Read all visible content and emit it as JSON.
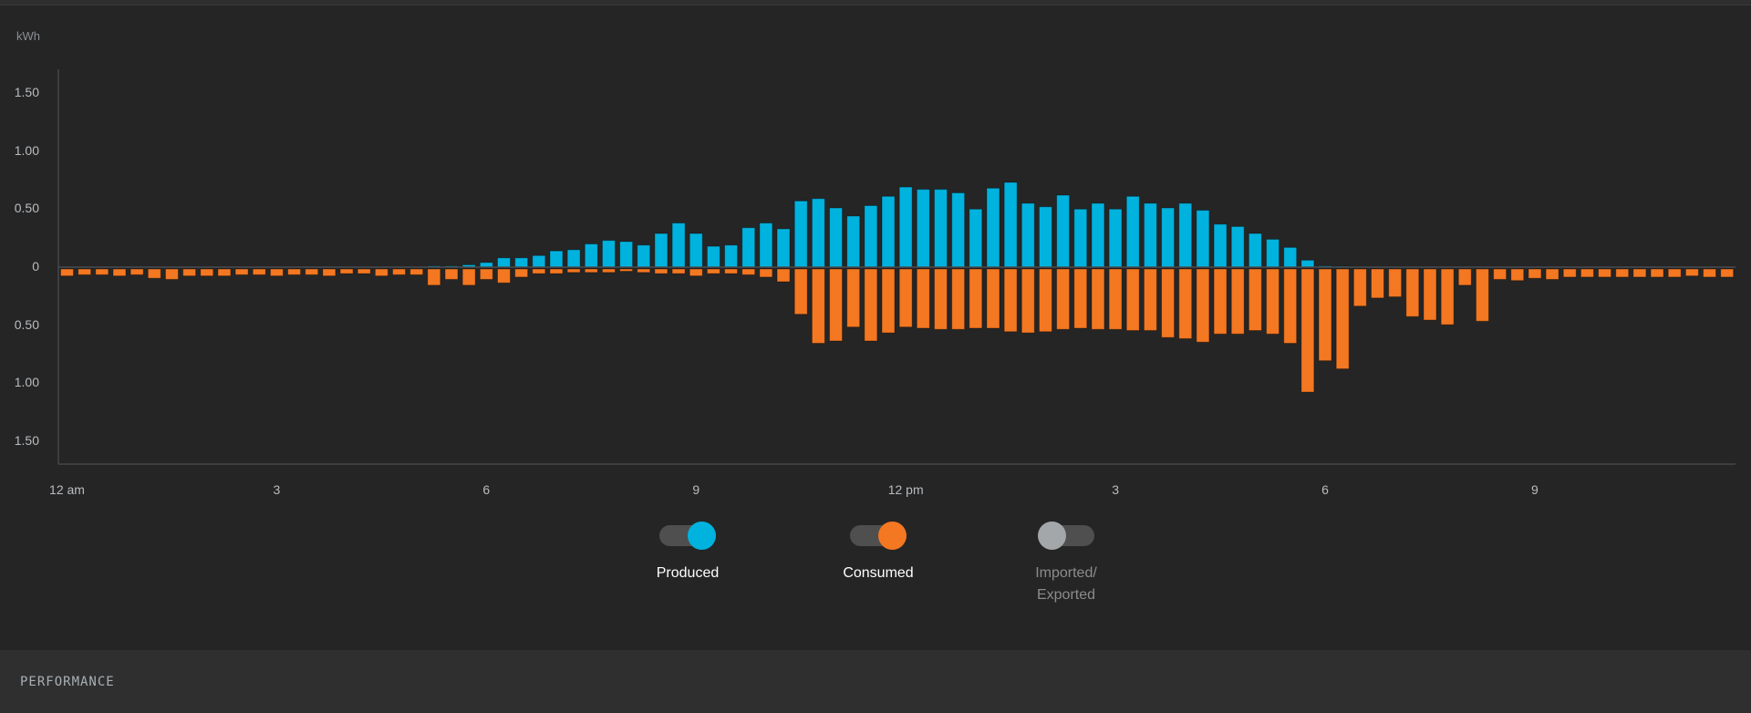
{
  "chart_data": {
    "type": "bar",
    "ylabel": "kWh",
    "ylim": [
      -1.7,
      1.7
    ],
    "yticks": [
      {
        "value": 1.5,
        "label": "1.50"
      },
      {
        "value": 1.0,
        "label": "1.00"
      },
      {
        "value": 0.5,
        "label": "0.50"
      },
      {
        "value": 0,
        "label": "0"
      },
      {
        "value": -0.5,
        "label": "0.50"
      },
      {
        "value": -1.0,
        "label": "1.00"
      },
      {
        "value": -1.5,
        "label": "1.50"
      }
    ],
    "xticks": [
      {
        "index": 0,
        "label": "12 am"
      },
      {
        "index": 12,
        "label": "3"
      },
      {
        "index": 24,
        "label": "6"
      },
      {
        "index": 36,
        "label": "9"
      },
      {
        "index": 48,
        "label": "12 pm"
      },
      {
        "index": 60,
        "label": "3"
      },
      {
        "index": 72,
        "label": "6"
      },
      {
        "index": 84,
        "label": "9"
      }
    ],
    "interval_minutes": 15,
    "series": [
      {
        "name": "Produced",
        "color": "#00b2de",
        "values": [
          0,
          0,
          0,
          0,
          0,
          0,
          0,
          0,
          0,
          0,
          0,
          0,
          0,
          0,
          0,
          0,
          0,
          0,
          0,
          0,
          0,
          0.01,
          0.01,
          0.02,
          0.04,
          0.08,
          0.08,
          0.1,
          0.14,
          0.15,
          0.2,
          0.23,
          0.22,
          0.19,
          0.29,
          0.38,
          0.29,
          0.18,
          0.19,
          0.34,
          0.38,
          0.33,
          0.57,
          0.59,
          0.51,
          0.44,
          0.53,
          0.61,
          0.69,
          0.67,
          0.67,
          0.64,
          0.5,
          0.68,
          0.73,
          0.55,
          0.52,
          0.62,
          0.5,
          0.55,
          0.5,
          0.61,
          0.55,
          0.51,
          0.55,
          0.49,
          0.37,
          0.35,
          0.29,
          0.24,
          0.17,
          0.06,
          0.01,
          0.005,
          0,
          0,
          0,
          0,
          0,
          0,
          0,
          0,
          0,
          0,
          0,
          0,
          0,
          0,
          0,
          0,
          0,
          0,
          0,
          0,
          0,
          0
        ]
      },
      {
        "name": "Consumed",
        "color": "#f47721",
        "values": [
          -0.06,
          -0.05,
          -0.05,
          -0.06,
          -0.05,
          -0.08,
          -0.09,
          -0.06,
          -0.06,
          -0.06,
          -0.05,
          -0.05,
          -0.06,
          -0.05,
          -0.05,
          -0.06,
          -0.04,
          -0.04,
          -0.06,
          -0.05,
          -0.05,
          -0.14,
          -0.09,
          -0.14,
          -0.09,
          -0.12,
          -0.07,
          -0.04,
          -0.04,
          -0.03,
          -0.03,
          -0.03,
          -0.02,
          -0.03,
          -0.04,
          -0.04,
          -0.06,
          -0.04,
          -0.04,
          -0.05,
          -0.07,
          -0.11,
          -0.39,
          -0.64,
          -0.62,
          -0.5,
          -0.62,
          -0.55,
          -0.5,
          -0.51,
          -0.52,
          -0.52,
          -0.51,
          -0.51,
          -0.54,
          -0.55,
          -0.54,
          -0.52,
          -0.51,
          -0.52,
          -0.52,
          -0.53,
          -0.53,
          -0.59,
          -0.6,
          -0.63,
          -0.56,
          -0.56,
          -0.53,
          -0.56,
          -0.64,
          -1.06,
          -0.79,
          -0.86,
          -0.32,
          -0.25,
          -0.24,
          -0.41,
          -0.44,
          -0.48,
          -0.14,
          -0.45,
          -0.09,
          -0.1,
          -0.08,
          -0.09,
          -0.07,
          -0.07,
          -0.07,
          -0.07,
          -0.07,
          -0.07,
          -0.07,
          -0.06,
          -0.07,
          -0.07
        ]
      }
    ]
  },
  "legend": [
    {
      "label": "Produced",
      "enabled": true,
      "color": "#00b2de"
    },
    {
      "label": "Consumed",
      "enabled": true,
      "color": "#f47721"
    },
    {
      "label": "Imported/",
      "label2": "Exported",
      "enabled": false,
      "color": "#a4a7a9"
    }
  ],
  "section": {
    "title": "PERFORMANCE"
  }
}
